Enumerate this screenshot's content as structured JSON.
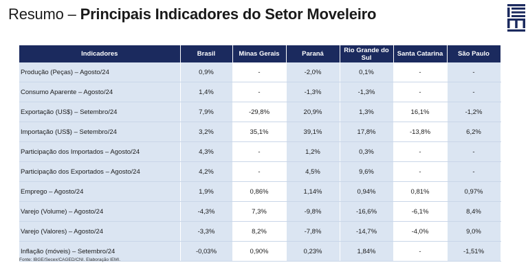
{
  "header": {
    "title_prefix": "Resumo – ",
    "title_main": "Principais Indicadores do Setor Moveleiro",
    "logo_text": "IEMI"
  },
  "table": {
    "headers": [
      "Indicadores",
      "Brasil",
      "Minas Gerais",
      "Paraná",
      "Rio Grande do Sul",
      "Santa Catarina",
      "São Paulo"
    ],
    "rows": [
      [
        "Produção (Peças) – Agosto/24",
        "0,9%",
        "-",
        "-2,0%",
        "0,1%",
        "-",
        "-"
      ],
      [
        "Consumo Aparente – Agosto/24",
        "1,4%",
        "-",
        "-1,3%",
        "-1,3%",
        "-",
        "-"
      ],
      [
        "Exportação (US$) – Setembro/24",
        "7,9%",
        "-29,8%",
        "20,9%",
        "1,3%",
        "16,1%",
        "-1,2%"
      ],
      [
        "Importação (US$) – Setembro/24",
        "3,2%",
        "35,1%",
        "39,1%",
        "17,8%",
        "-13,8%",
        "6,2%"
      ],
      [
        "Participação dos Importados – Agosto/24",
        "4,3%",
        "-",
        "1,2%",
        "0,3%",
        "-",
        "-"
      ],
      [
        "Participação dos Exportados – Agosto/24",
        "4,2%",
        "-",
        "4,5%",
        "9,6%",
        "-",
        "-"
      ],
      [
        "Emprego – Agosto/24",
        "1,9%",
        "0,86%",
        "1,14%",
        "0,94%",
        "0,81%",
        "0,97%"
      ],
      [
        "Varejo (Volume) – Agosto/24",
        "-4,3%",
        "7,3%",
        "-9,8%",
        "-16,6%",
        "-6,1%",
        "8,4%"
      ],
      [
        "Varejo (Valores) – Agosto/24",
        "-3,3%",
        "8,2%",
        "-7,8%",
        "-14,7%",
        "-4,0%",
        "9,0%"
      ],
      [
        "Inflação (móveis) – Setembro/24",
        "-0,03%",
        "0,90%",
        "0,23%",
        "1,84%",
        "-",
        "-1,51%"
      ]
    ]
  },
  "footer": {
    "source": "Fonte: IBGE/Secex/CAGED/CNI. Elaboração IEMI."
  },
  "colors": {
    "header_bg": "#1b2a5e",
    "cell_blue": "#dbe5f2",
    "cell_white": "#ffffff"
  }
}
